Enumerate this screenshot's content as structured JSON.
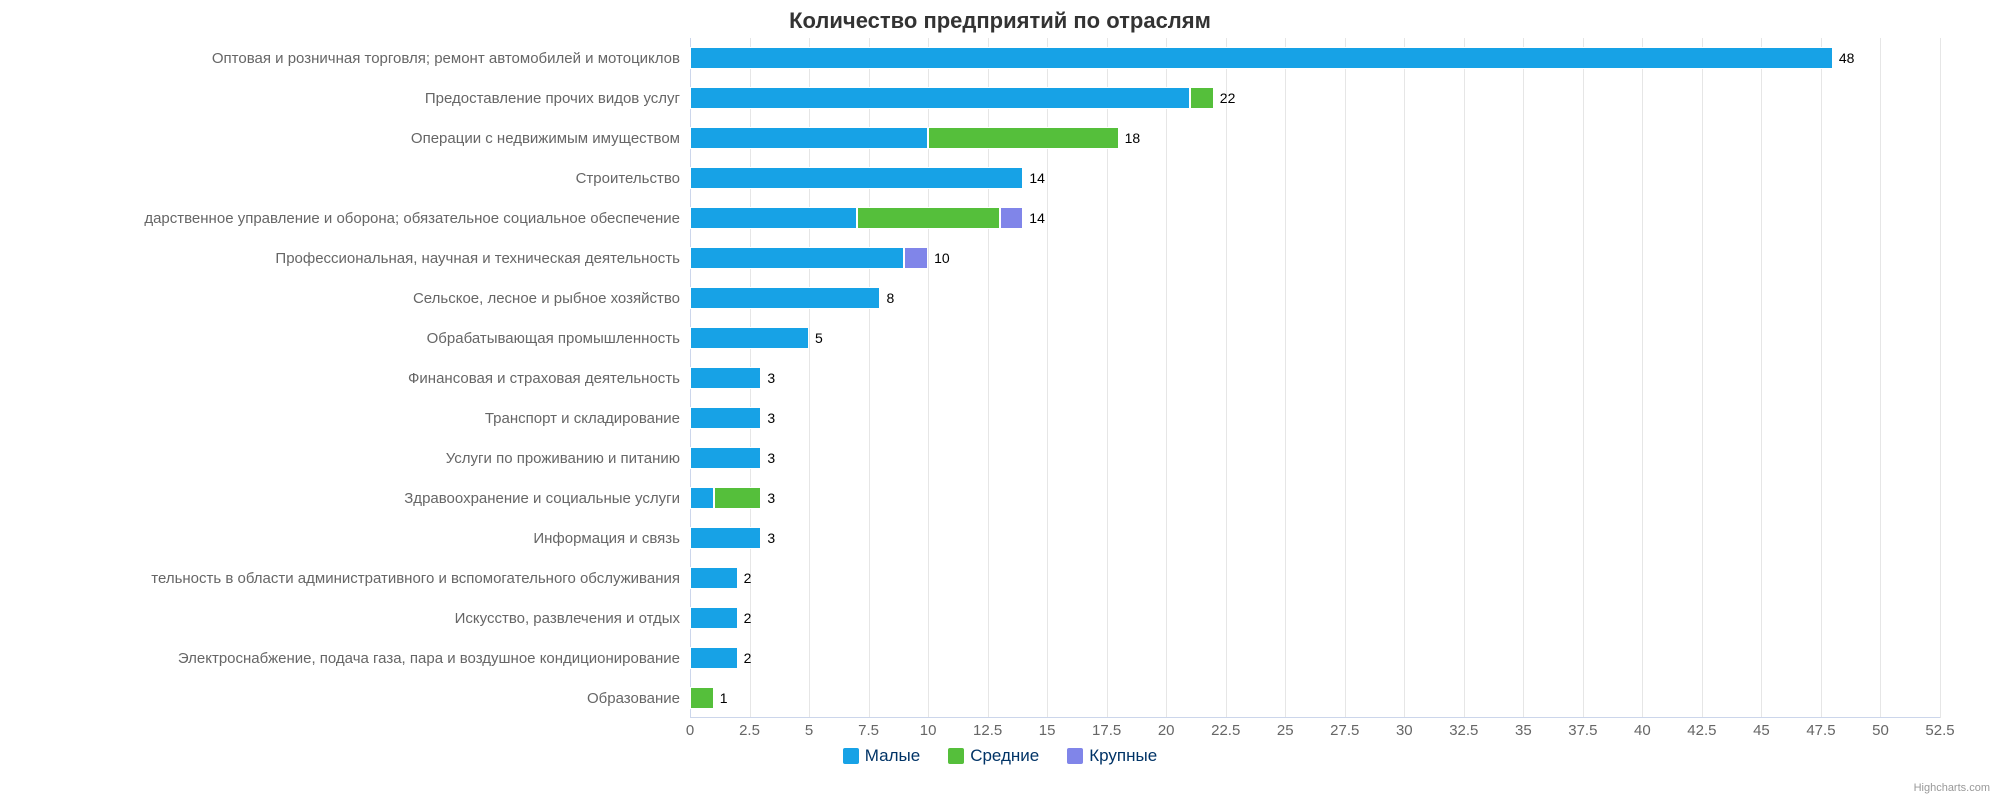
{
  "chart": {
    "type": "bar-stacked-horizontal",
    "title": "Количество предприятий по отраслям",
    "title_fontsize": 22,
    "title_color": "#333333",
    "background_color": "#ffffff",
    "grid_color": "#e6e6e6",
    "axis_line_color": "#ccd6eb",
    "label_color": "#666666",
    "label_fontsize": 15,
    "value_label_fontsize": 14,
    "xmin": 0,
    "xmax": 52.5,
    "xtick_step": 2.5,
    "xticks": [
      "0",
      "2.5",
      "5",
      "7.5",
      "10",
      "12.5",
      "15",
      "17.5",
      "20",
      "22.5",
      "25",
      "27.5",
      "30",
      "32.5",
      "35",
      "37.5",
      "40",
      "42.5",
      "45",
      "47.5",
      "50",
      "52.5"
    ],
    "categories": [
      "Оптовая и розничная торговля; ремонт автомобилей и мотоциклов",
      "Предоставление прочих видов услуг",
      "Операции с недвижимым имуществом",
      "Строительство",
      "дарственное управление и оборона; обязательное социальное обеспечение",
      "Профессиональная, научная и техническая деятельность",
      "Сельское, лесное и рыбное хозяйство",
      "Обрабатывающая промышленность",
      "Финансовая и страховая деятельность",
      "Транспорт и складирование",
      "Услуги по проживанию и питанию",
      "Здравоохранение и социальные услуги",
      "Информация и связь",
      "тельность в области административного и вспомогательного обслуживания",
      "Искусство, развлечения и отдых",
      "Электроснабжение, подача газа, пара и воздушное кондиционирование",
      "Образование"
    ],
    "series": [
      {
        "name": "Малые",
        "color": "#17a2e6",
        "data": [
          48,
          21,
          10,
          14,
          7,
          9,
          8,
          5,
          3,
          3,
          3,
          1,
          3,
          2,
          2,
          2,
          0
        ]
      },
      {
        "name": "Средние",
        "color": "#55bf3b",
        "data": [
          0,
          1,
          8,
          0,
          6,
          0,
          0,
          0,
          0,
          0,
          0,
          2,
          0,
          0,
          0,
          0,
          1
        ]
      },
      {
        "name": "Крупные",
        "color": "#8085e9",
        "data": [
          0,
          0,
          0,
          0,
          1,
          1,
          0,
          0,
          0,
          0,
          0,
          0,
          0,
          0,
          0,
          0,
          0
        ]
      }
    ],
    "totals": [
      48,
      22,
      18,
      14,
      14,
      10,
      8,
      5,
      3,
      3,
      3,
      3,
      3,
      2,
      2,
      2,
      1
    ],
    "legend_color": "#003366",
    "legend_fontsize": 17,
    "credit": "Highcharts.com"
  }
}
